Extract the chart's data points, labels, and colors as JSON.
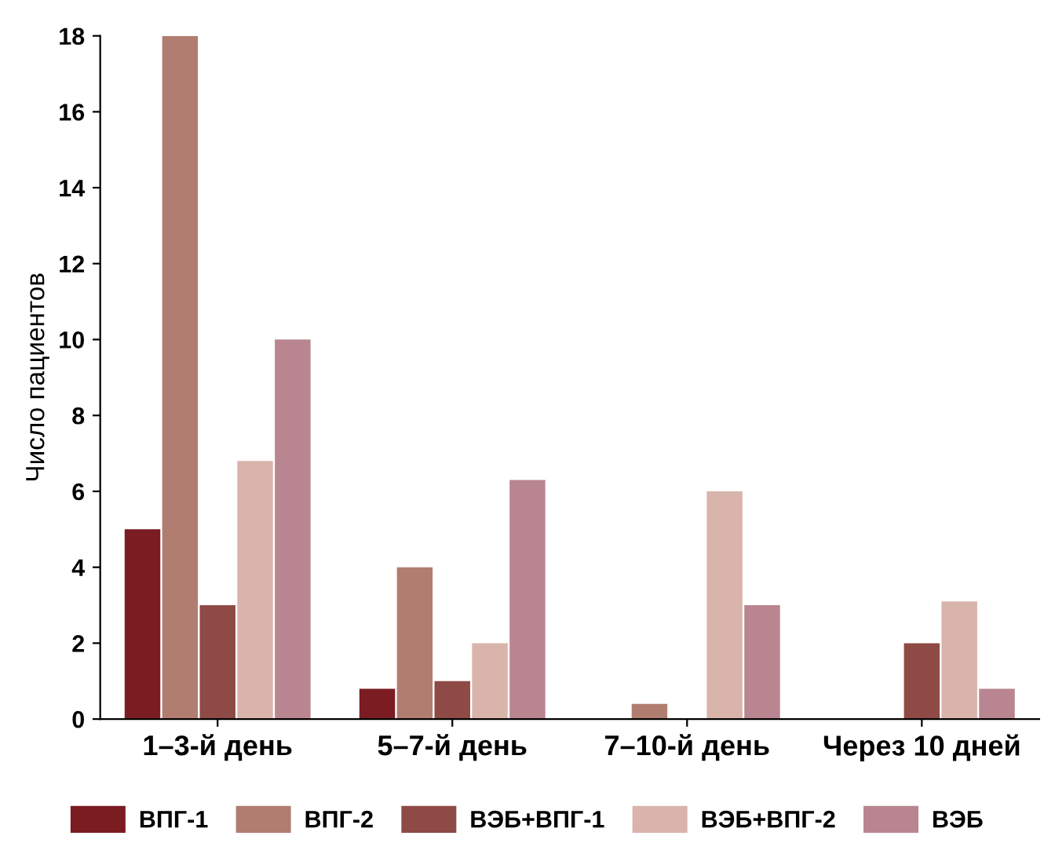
{
  "chart_data": {
    "type": "bar",
    "ylabel": "Число пациентов",
    "categories": [
      "1–3-й день",
      "5–7-й день",
      "7–10-й день",
      "Через 10 дней"
    ],
    "series": [
      {
        "name": "ВПГ-1",
        "color": "#7b1c22",
        "values": [
          5,
          0.8,
          0,
          0
        ]
      },
      {
        "name": "ВПГ-2",
        "color": "#b07d70",
        "values": [
          18,
          4,
          0.4,
          0
        ]
      },
      {
        "name": "ВЭБ+ВПГ-1",
        "color": "#8e4a45",
        "values": [
          3,
          1,
          0,
          2
        ]
      },
      {
        "name": "ВЭБ+ВПГ-2",
        "color": "#d8b4aa",
        "values": [
          6.8,
          2,
          6,
          3.1
        ]
      },
      {
        "name": "ВЭБ",
        "color": "#b88590",
        "values": [
          10,
          6.3,
          3,
          0.8
        ]
      }
    ],
    "ylim": [
      0,
      18
    ],
    "yticks": [
      0,
      2,
      4,
      6,
      8,
      10,
      12,
      14,
      16,
      18
    ],
    "grid": false,
    "legend": "bottom"
  }
}
